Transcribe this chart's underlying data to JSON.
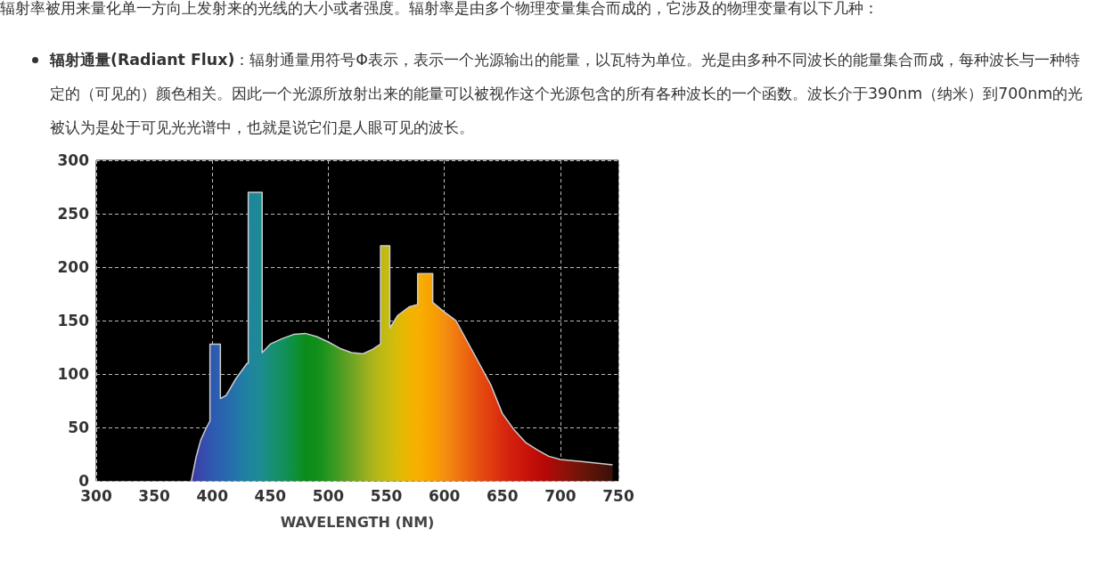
{
  "chart_data": {
    "type": "area",
    "title": "辐射率被用来量化单一方向上发射来的光线的大小或者强度。辐射率是由多个物理变量集合而成的，它涉及的物理变量有以下几种：",
    "annotations": [
      "辐射通量(Radiant Flux)",
      "：辐射通量用符号Φ表示，表示一个光源输出的能量，以瓦特为单位。光是由多种不同波长的能量集合而成，每种波长与一种特定的（可见的）颜色相关。因此一个光源所放射出来的能量可以被视作这个光源包含的所有各种波长的一个函数。波长介于390nm（纳米）到700nm的光被认为是处于可见光光谱中，也就是说它们是人眼可见的波长。"
    ],
    "xlabel": "WAVELENGTH (NM)",
    "x": [
      382,
      386,
      390,
      395,
      398,
      398,
      407,
      407,
      412,
      420,
      430,
      431,
      431,
      443,
      443,
      450,
      460,
      470,
      480,
      490,
      500,
      510,
      520,
      530,
      538,
      545,
      545,
      553,
      553,
      560,
      570,
      577,
      577,
      590,
      590,
      600,
      610,
      620,
      630,
      640,
      650,
      660,
      670,
      680,
      690,
      700,
      720,
      745
    ],
    "series": [
      {
        "color": "#cccccc",
        "values": [
          0,
          22,
          38,
          50,
          56,
          128,
          128,
          77,
          80,
          95,
          110,
          110,
          270,
          270,
          120,
          128,
          133,
          137,
          138,
          135,
          130,
          124,
          120,
          119,
          123,
          128,
          220,
          220,
          143,
          155,
          163,
          165,
          194,
          194,
          167,
          158,
          150,
          130,
          110,
          90,
          63,
          48,
          36,
          29,
          23,
          20,
          18,
          15
        ],
        "colors": [
          "#3b3a9e",
          "#3a40a6",
          "#3848aa",
          "#3450ae",
          "#2f56b0",
          "#2f56b0",
          "#2a62b0",
          "#2a62b0",
          "#2868ae",
          "#2474aa",
          "#1f82a2",
          "#1f82a2",
          "#1f84a0",
          "#1c8c90",
          "#1c8c90",
          "#188e78",
          "#129060",
          "#0e9040",
          "#0a8c1a",
          "#108e1a",
          "#2a9620",
          "#4a9c22",
          "#6ca424",
          "#90ac20",
          "#aab41a",
          "#bcb814",
          "#bcb814",
          "#cabc10",
          "#cabc10",
          "#dcba08",
          "#f0b400",
          "#f8b000",
          "#f8b000",
          "#f8a000",
          "#f8a000",
          "#f49010",
          "#f07a10",
          "#ec6410",
          "#e64e10",
          "#e03c10",
          "#d82a10",
          "#d01e0c",
          "#c8140a",
          "#be0c08",
          "#b00808",
          "#981008",
          "#6a1408",
          "#3a1008"
        ]
      }
    ],
    "xlim": [
      300,
      750
    ],
    "xticks": [
      300,
      350,
      400,
      450,
      500,
      550,
      600,
      650,
      700,
      750
    ],
    "ylim": [
      0,
      300
    ],
    "yticks": [
      0,
      50,
      100,
      150,
      200,
      250,
      300
    ],
    "grid": true,
    "line_style": "solid",
    "marker": "none"
  }
}
